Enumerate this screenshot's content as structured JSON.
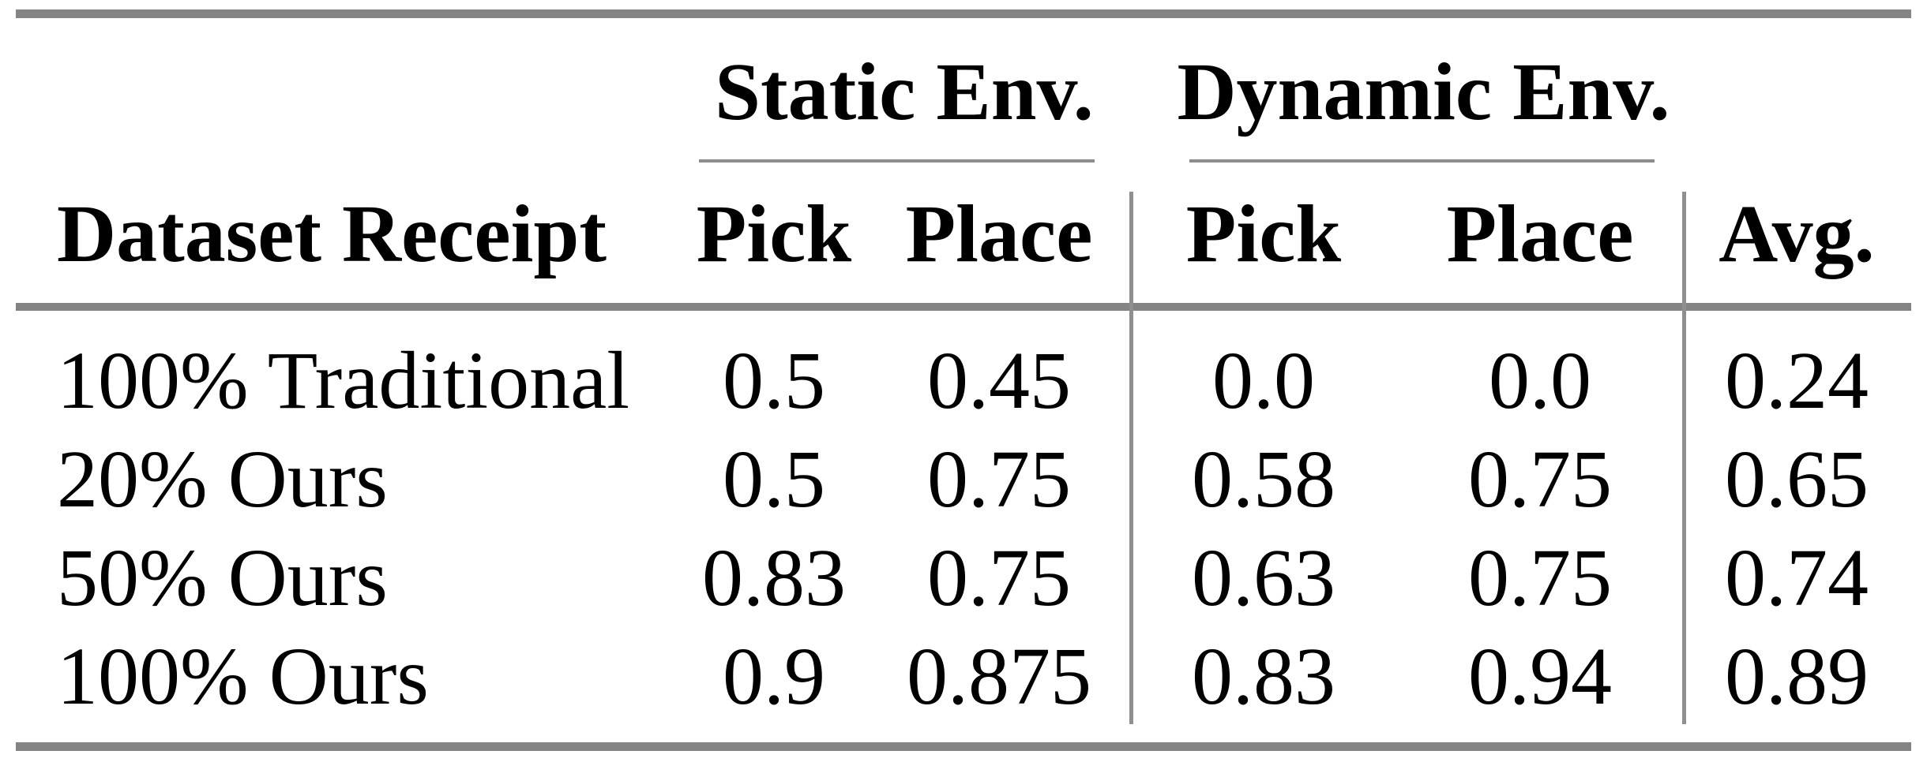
{
  "table": {
    "col_groups": {
      "static_label": "Static Env.",
      "dynamic_label": "Dynamic Env."
    },
    "headers": {
      "row_label": "Dataset Receipt",
      "static_pick": "Pick",
      "static_place": "Place",
      "dynamic_pick": "Pick",
      "dynamic_place": "Place",
      "avg": "Avg."
    },
    "rows": [
      {
        "label": "100% Traditional",
        "static_pick": "0.5",
        "static_place": "0.45",
        "dynamic_pick": "0.0",
        "dynamic_place": "0.0",
        "avg": "0.24"
      },
      {
        "label": "20% Ours",
        "static_pick": "0.5",
        "static_place": "0.75",
        "dynamic_pick": "0.58",
        "dynamic_place": "0.75",
        "avg": "0.65"
      },
      {
        "label": "50% Ours",
        "static_pick": "0.83",
        "static_place": "0.75",
        "dynamic_pick": "0.63",
        "dynamic_place": "0.75",
        "avg": "0.74"
      },
      {
        "label": "100% Ours",
        "static_pick": "0.9",
        "static_place": "0.875",
        "dynamic_pick": "0.83",
        "dynamic_place": "0.94",
        "avg": "0.89"
      }
    ],
    "colors": {
      "rule_thick": "#848484",
      "rule_thin": "#8c8c8c",
      "separator": "#8f8f8f",
      "text": "#000000",
      "background": "#ffffff"
    }
  }
}
